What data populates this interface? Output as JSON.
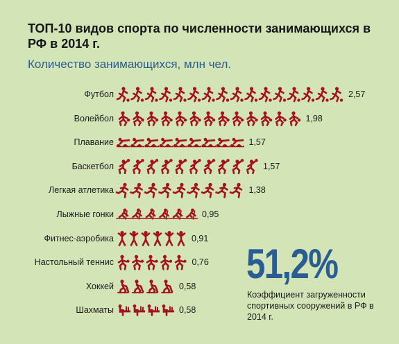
{
  "title": "ТОП-10 видов спорта по численности занимающихся в РФ в 2014 г.",
  "subtitle": "Количество занимающихся, млн чел.",
  "highlight": {
    "value": "51,2%",
    "caption": "Коэффициент загруженности спортивных сооружений в РФ в 2014 г."
  },
  "colors": {
    "icon": "#a3121e",
    "accent": "#2a5d92",
    "background": "#d3e4b6"
  },
  "chart_data": {
    "type": "bar",
    "unit": "млн чел.",
    "categories": [
      "Футбол",
      "Волейбол",
      "Плавание",
      "Баскетбол",
      "Легкая атлетика",
      "Лыжные гонки",
      "Фитнес-аэробика",
      "Настольный теннис",
      "Хоккей",
      "Шахматы"
    ],
    "values": [
      2.57,
      1.98,
      1.57,
      1.57,
      1.38,
      0.95,
      0.91,
      0.76,
      0.58,
      0.58
    ],
    "value_labels": [
      "2,57",
      "1,98",
      "1,57",
      "1,57",
      "1,38",
      "0,95",
      "0,91",
      "0,76",
      "0,58",
      "0,58"
    ],
    "icon_counts": [
      16,
      13,
      9,
      10,
      9,
      6,
      6,
      5,
      4,
      4
    ],
    "icon_types": [
      "football",
      "volleyball",
      "swimming",
      "basketball",
      "athletics",
      "skiing",
      "fitness",
      "tabletennis",
      "hockey",
      "chess"
    ]
  }
}
